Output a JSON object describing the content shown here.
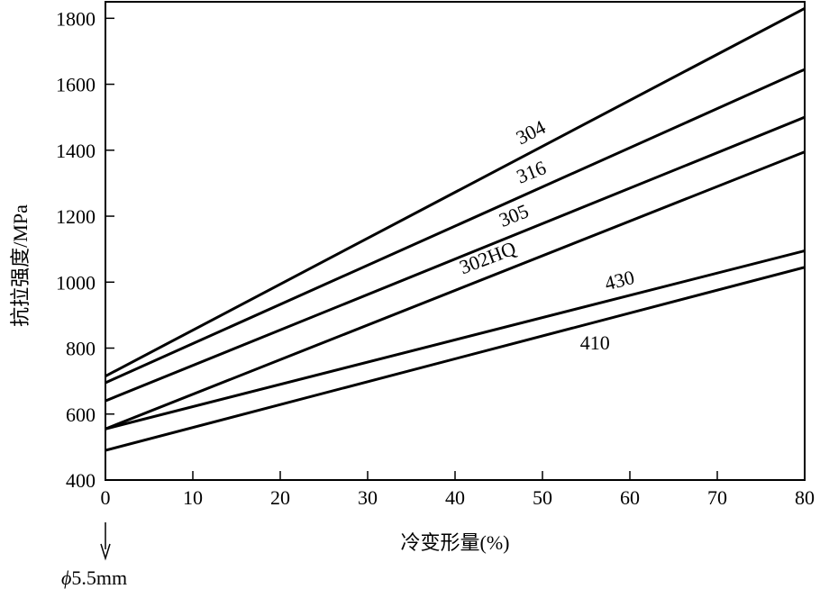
{
  "chart_data": {
    "type": "line",
    "xlabel": "冷变形量(%)",
    "ylabel": "抗拉强度/MPa",
    "xlim": [
      0,
      80
    ],
    "ylim": [
      400,
      1850
    ],
    "xticks": [
      0,
      10,
      20,
      30,
      40,
      50,
      60,
      70,
      80
    ],
    "yticks": [
      400,
      600,
      800,
      1000,
      1200,
      1400,
      1600,
      1800
    ],
    "grid": false,
    "legend": "none",
    "series": [
      {
        "name": "304",
        "x": [
          0,
          80
        ],
        "values": [
          715,
          1830
        ]
      },
      {
        "name": "316",
        "x": [
          0,
          80
        ],
        "values": [
          695,
          1645
        ]
      },
      {
        "name": "305",
        "x": [
          0,
          80
        ],
        "values": [
          640,
          1500
        ]
      },
      {
        "name": "302HQ",
        "x": [
          0,
          80
        ],
        "values": [
          555,
          1395
        ]
      },
      {
        "name": "430",
        "x": [
          0,
          80
        ],
        "values": [
          555,
          1095
        ]
      },
      {
        "name": "410",
        "x": [
          0,
          80
        ],
        "values": [
          490,
          1045
        ]
      }
    ],
    "annotations": [
      {
        "text": "ϕ5.5mm",
        "x": 0,
        "arrow": "down"
      }
    ]
  }
}
